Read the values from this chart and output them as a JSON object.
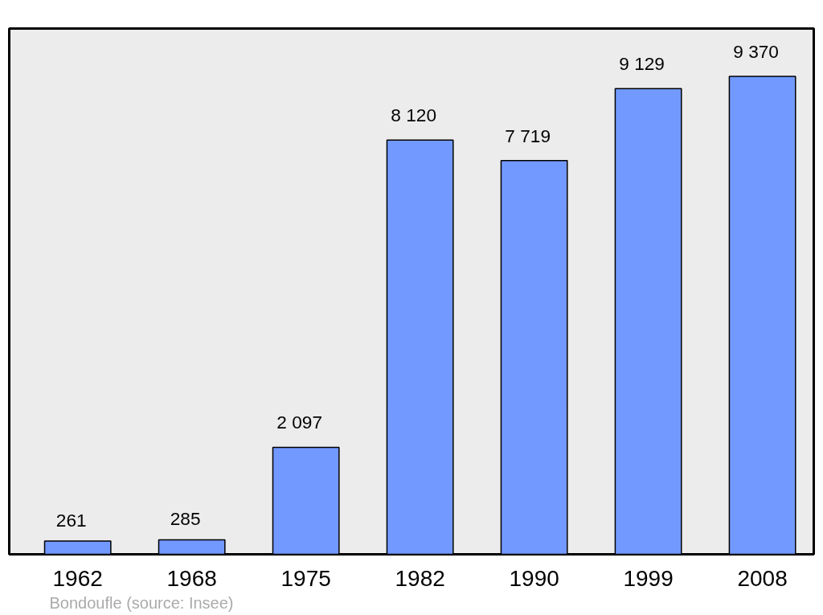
{
  "chart_data": {
    "type": "bar",
    "categories": [
      "1962",
      "1968",
      "1975",
      "1982",
      "1990",
      "1999",
      "2008"
    ],
    "values": [
      261,
      285,
      2097,
      8120,
      7719,
      9129,
      9370
    ],
    "color": "#7299ff",
    "relative": false,
    "data_labels": true,
    "value_labels": [
      "261",
      "285",
      "2 097",
      "8 120",
      "7 719",
      "9 129",
      "9 370"
    ],
    "annotations": [
      "Bondoufle    (source: Insee)"
    ]
  }
}
